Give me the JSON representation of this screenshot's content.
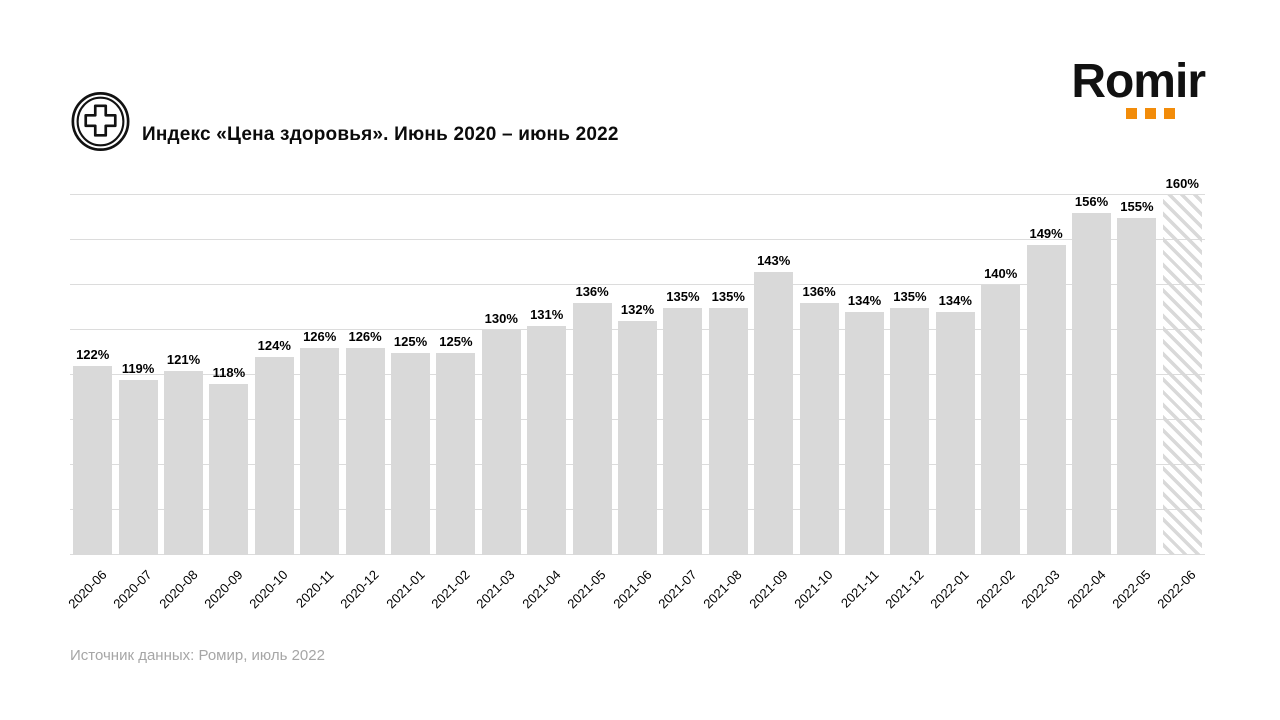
{
  "header": {
    "title": "Индекс «Цена здоровья». Июнь 2020 – июнь 2022",
    "icon": "medical-cross-icon"
  },
  "logo": {
    "text": "Romir",
    "dot_color": "#f28c0a",
    "dot_count": 3
  },
  "footer": {
    "source": "Источник данных: Ромир, июль 2022"
  },
  "colors": {
    "bar_fill": "#d9d9d9",
    "hatched_bar_stripe": "#d9d9d9",
    "gridline": "#dcdcdc",
    "title_text": "#0b0b0b",
    "value_label": "#000000",
    "axis_label": "#000000",
    "source_text": "#a6a6a6",
    "logo_text": "#111111",
    "logo_orange": "#f28c0a"
  },
  "chart_data": {
    "type": "bar",
    "title": "Индекс «Цена здоровья». Июнь 2020 – июнь 2022",
    "categories": [
      "2020-06",
      "2020-07",
      "2020-08",
      "2020-09",
      "2020-10",
      "2020-11",
      "2020-12",
      "2021-01",
      "2021-02",
      "2021-03",
      "2021-04",
      "2021-05",
      "2021-06",
      "2021-07",
      "2021-08",
      "2021-09",
      "2021-10",
      "2021-11",
      "2021-12",
      "2022-01",
      "2022-02",
      "2022-03",
      "2022-04",
      "2022-05",
      "2022-06"
    ],
    "values": [
      122,
      119,
      121,
      118,
      124,
      126,
      126,
      125,
      125,
      130,
      131,
      136,
      132,
      135,
      135,
      143,
      136,
      134,
      135,
      134,
      140,
      149,
      156,
      155,
      160
    ],
    "unit": "%",
    "xlabel": "",
    "ylabel": "",
    "ylim": [
      80,
      160
    ],
    "grid_step": 10,
    "grid": true,
    "legend_position": "none",
    "data_labels": true,
    "x_tick_rotation": 45,
    "last_bar_style": "hatched"
  }
}
